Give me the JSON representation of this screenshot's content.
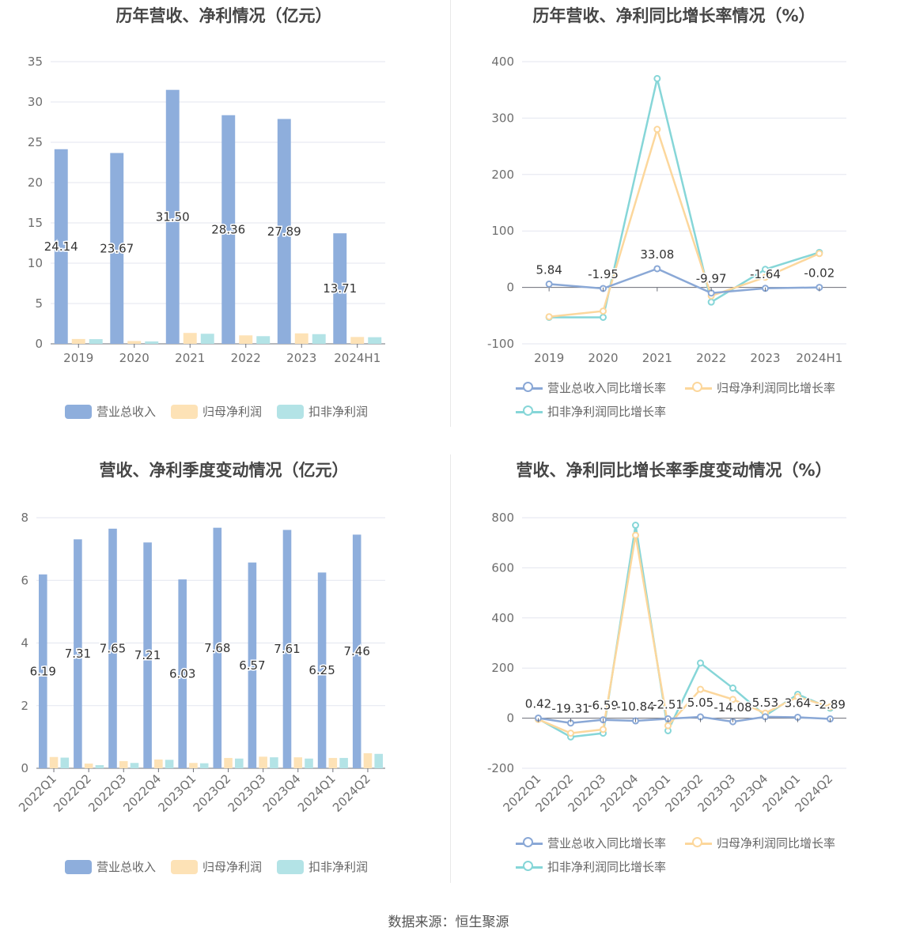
{
  "colors": {
    "revenue": "#8eaedc",
    "net_profit": "#fde2b6",
    "deducted_profit": "#b3e3e6",
    "revenue_line": "#8aa8d6",
    "net_line": "#fcd79c",
    "deducted_line": "#86d6d8",
    "grid": "#e3e6ef"
  },
  "legend_bar": [
    "营业总收入",
    "归母净利润",
    "扣非净利润"
  ],
  "legend_line": [
    "营业总收入同比增长率",
    "归母净利润同比增长率",
    "扣非净利润同比增长率"
  ],
  "source": "数据来源：恒生聚源",
  "chart_data": [
    {
      "type": "bar",
      "title": "历年营收、净利情况（亿元）",
      "categories": [
        "2019",
        "2020",
        "2021",
        "2022",
        "2023",
        "2024H1"
      ],
      "ylim": [
        0,
        35
      ],
      "yticks": [
        0,
        5,
        10,
        15,
        20,
        25,
        30,
        35
      ],
      "series": [
        {
          "name": "营业总收入",
          "values": [
            24.14,
            23.67,
            31.5,
            28.36,
            27.89,
            13.71
          ]
        },
        {
          "name": "归母净利润",
          "values": [
            0.6,
            0.35,
            1.35,
            1.05,
            1.3,
            0.85
          ]
        },
        {
          "name": "扣非净利润",
          "values": [
            0.58,
            0.3,
            1.25,
            0.95,
            1.2,
            0.82
          ]
        }
      ],
      "data_labels": [
        "24.14",
        "23.67",
        "31.50",
        "28.36",
        "27.89",
        "13.71"
      ],
      "legend": "bottom",
      "grid": true
    },
    {
      "type": "line",
      "title": "历年营收、净利同比增长率情况（%）",
      "categories": [
        "2019",
        "2020",
        "2021",
        "2022",
        "2023",
        "2024H1"
      ],
      "ylim": [
        -100,
        400
      ],
      "yticks": [
        -100,
        0,
        100,
        200,
        300,
        400
      ],
      "series": [
        {
          "name": "营业总收入同比增长率",
          "values": [
            5.84,
            -1.95,
            33.08,
            -9.97,
            -1.64,
            -0.02
          ]
        },
        {
          "name": "归母净利润同比增长率",
          "values": [
            -52,
            -42,
            280,
            -15,
            18,
            60
          ]
        },
        {
          "name": "扣非净利润同比增长率",
          "values": [
            -53,
            -53,
            370,
            -26,
            32,
            62
          ]
        }
      ],
      "data_labels": [
        "5.84",
        "-1.95",
        "33.08",
        "-9.97",
        "-1.64",
        "-0.02"
      ],
      "legend": "bottom",
      "grid": true
    },
    {
      "type": "bar",
      "title": "营收、净利季度变动情况（亿元）",
      "categories": [
        "2022Q1",
        "2022Q2",
        "2022Q3",
        "2022Q4",
        "2023Q1",
        "2023Q2",
        "2023Q3",
        "2023Q4",
        "2024Q1",
        "2024Q2"
      ],
      "ylim": [
        0,
        8
      ],
      "yticks": [
        0,
        2,
        4,
        6,
        8
      ],
      "series": [
        {
          "name": "营业总收入",
          "values": [
            6.19,
            7.31,
            7.65,
            7.21,
            6.03,
            7.68,
            6.57,
            7.61,
            6.25,
            7.46
          ]
        },
        {
          "name": "归母净利润",
          "values": [
            0.36,
            0.15,
            0.23,
            0.28,
            0.17,
            0.33,
            0.37,
            0.35,
            0.33,
            0.48
          ]
        },
        {
          "name": "扣非净利润",
          "values": [
            0.34,
            0.1,
            0.17,
            0.27,
            0.16,
            0.31,
            0.35,
            0.31,
            0.33,
            0.46
          ]
        }
      ],
      "data_labels": [
        "6.19",
        "7.31",
        "7.65",
        "7.21",
        "6.03",
        "7.68",
        "6.57",
        "7.61",
        "6.25",
        "7.46"
      ],
      "legend": "bottom",
      "grid": true
    },
    {
      "type": "line",
      "title": "营收、净利同比增长率季度变动情况（%）",
      "categories": [
        "2022Q1",
        "2022Q2",
        "2022Q3",
        "2022Q4",
        "2023Q1",
        "2023Q2",
        "2023Q3",
        "2023Q4",
        "2024Q1",
        "2024Q2"
      ],
      "ylim": [
        -200,
        800
      ],
      "yticks": [
        -200,
        0,
        200,
        400,
        600,
        800
      ],
      "series": [
        {
          "name": "营业总收入同比增长率",
          "values": [
            0.42,
            -19.31,
            -6.59,
            -10.84,
            -2.51,
            5.05,
            -14.08,
            5.53,
            3.64,
            -2.89
          ]
        },
        {
          "name": "归母净利润同比增长率",
          "values": [
            -5,
            -60,
            -45,
            730,
            -30,
            115,
            75,
            20,
            85,
            45
          ]
        },
        {
          "name": "扣非净利润同比增长率",
          "values": [
            -3,
            -75,
            -60,
            770,
            -50,
            220,
            120,
            10,
            95,
            40
          ]
        }
      ],
      "data_labels": [
        "0.42",
        "-19.31",
        "-6.59",
        "-10.84",
        "-2.51",
        "5.05",
        "-14.08",
        "5.53",
        "3.64",
        "-2.89"
      ],
      "legend": "bottom",
      "grid": true
    }
  ]
}
